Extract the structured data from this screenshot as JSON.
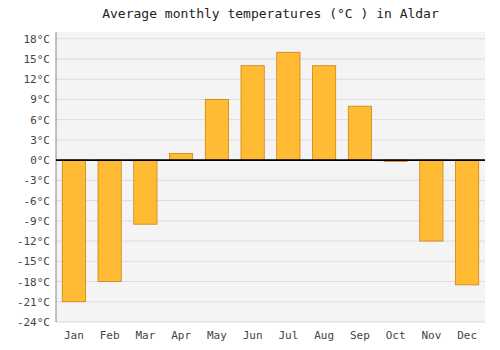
{
  "chart_data": {
    "type": "bar",
    "title": "Average monthly temperatures (°C ) in Aldar",
    "categories": [
      "Jan",
      "Feb",
      "Mar",
      "Apr",
      "May",
      "Jun",
      "Jul",
      "Aug",
      "Sep",
      "Oct",
      "Nov",
      "Dec"
    ],
    "values": [
      -21,
      -18,
      -9.5,
      1,
      9,
      14,
      16,
      14,
      8,
      -0.2,
      -12,
      -18.5
    ],
    "color": "#FFBB33",
    "ylim": [
      -24,
      19
    ],
    "yticks": [
      {
        "value": -24,
        "label": "-24°C"
      },
      {
        "value": -21,
        "label": "-21°C"
      },
      {
        "value": -18,
        "label": "-18°C"
      },
      {
        "value": -15,
        "label": "-15°C"
      },
      {
        "value": -12,
        "label": "-12°C"
      },
      {
        "value": -9,
        "label": "-9°C"
      },
      {
        "value": -6,
        "label": "-6°C"
      },
      {
        "value": -3,
        "label": "-3°C"
      },
      {
        "value": 0,
        "label": "0°C"
      },
      {
        "value": 3,
        "label": "3°C"
      },
      {
        "value": 6,
        "label": "6°C"
      },
      {
        "value": 9,
        "label": "9°C"
      },
      {
        "value": 12,
        "label": "12°C"
      },
      {
        "value": 15,
        "label": "15°C"
      },
      {
        "value": 18,
        "label": "18°C"
      }
    ],
    "grid": true
  }
}
